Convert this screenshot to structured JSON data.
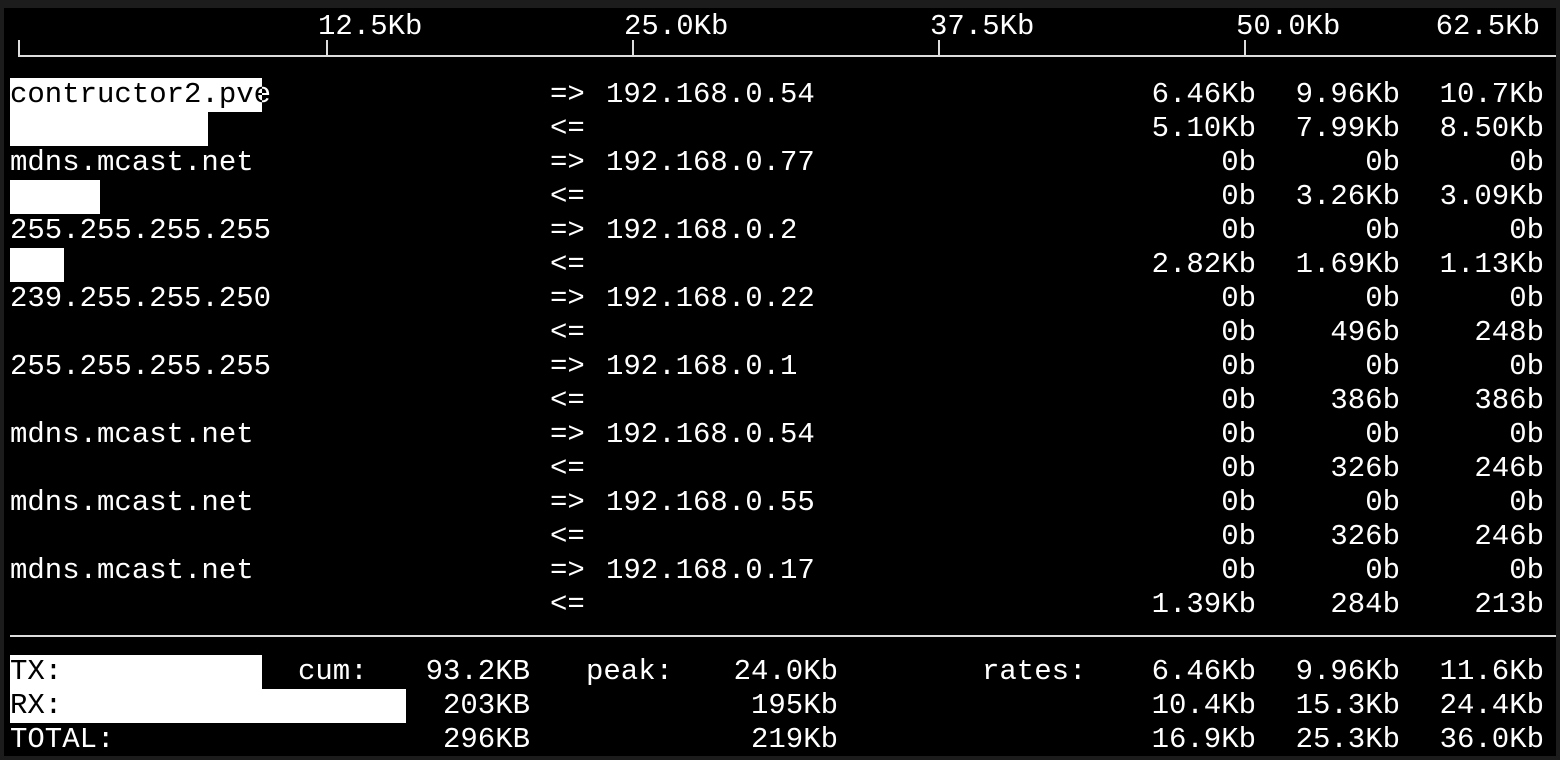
{
  "scale": {
    "ticks": [
      "12.5Kb",
      "25.0Kb",
      "37.5Kb",
      "50.0Kb",
      "62.5Kb"
    ]
  },
  "flows": [
    {
      "host": "contructor2.pve",
      "dest": "192.168.0.54",
      "tx": [
        "6.46Kb",
        "9.96Kb",
        "10.7Kb"
      ],
      "rx": [
        "5.10Kb",
        "7.99Kb",
        "8.50Kb"
      ]
    },
    {
      "host": "mdns.mcast.net",
      "dest": "192.168.0.77",
      "tx": [
        "0b",
        "0b",
        "0b"
      ],
      "rx": [
        "0b",
        "3.26Kb",
        "3.09Kb"
      ]
    },
    {
      "host": "255.255.255.255",
      "dest": "192.168.0.2",
      "tx": [
        "0b",
        "0b",
        "0b"
      ],
      "rx": [
        "2.82Kb",
        "1.69Kb",
        "1.13Kb"
      ]
    },
    {
      "host": "239.255.255.250",
      "dest": "192.168.0.22",
      "tx": [
        "0b",
        "0b",
        "0b"
      ],
      "rx": [
        "0b",
        "496b",
        "248b"
      ]
    },
    {
      "host": "255.255.255.255",
      "dest": "192.168.0.1",
      "tx": [
        "0b",
        "0b",
        "0b"
      ],
      "rx": [
        "0b",
        "386b",
        "386b"
      ]
    },
    {
      "host": "mdns.mcast.net",
      "dest": "192.168.0.54",
      "tx": [
        "0b",
        "0b",
        "0b"
      ],
      "rx": [
        "0b",
        "326b",
        "246b"
      ]
    },
    {
      "host": "mdns.mcast.net",
      "dest": "192.168.0.55",
      "tx": [
        "0b",
        "0b",
        "0b"
      ],
      "rx": [
        "0b",
        "326b",
        "246b"
      ]
    },
    {
      "host": "mdns.mcast.net",
      "dest": "192.168.0.17",
      "tx": [
        "0b",
        "0b",
        "0b"
      ],
      "rx": [
        "1.39Kb",
        "284b",
        "213b"
      ]
    }
  ],
  "arrows": {
    "out": "=>",
    "in": "<="
  },
  "totals": {
    "cum_label": "cum:",
    "peak_label": "peak:",
    "rates_label": "rates:",
    "rows": [
      {
        "label": "TX:",
        "cum": "93.2KB",
        "peak": "24.0Kb",
        "rates": [
          "6.46Kb",
          "9.96Kb",
          "11.6Kb"
        ]
      },
      {
        "label": "RX:",
        "cum": "203KB",
        "peak": "195Kb",
        "rates": [
          "10.4Kb",
          "15.3Kb",
          "24.4Kb"
        ]
      },
      {
        "label": "TOTAL:",
        "cum": "296KB",
        "peak": "219Kb",
        "rates": [
          "16.9Kb",
          "25.3Kb",
          "36.0Kb"
        ]
      }
    ]
  }
}
